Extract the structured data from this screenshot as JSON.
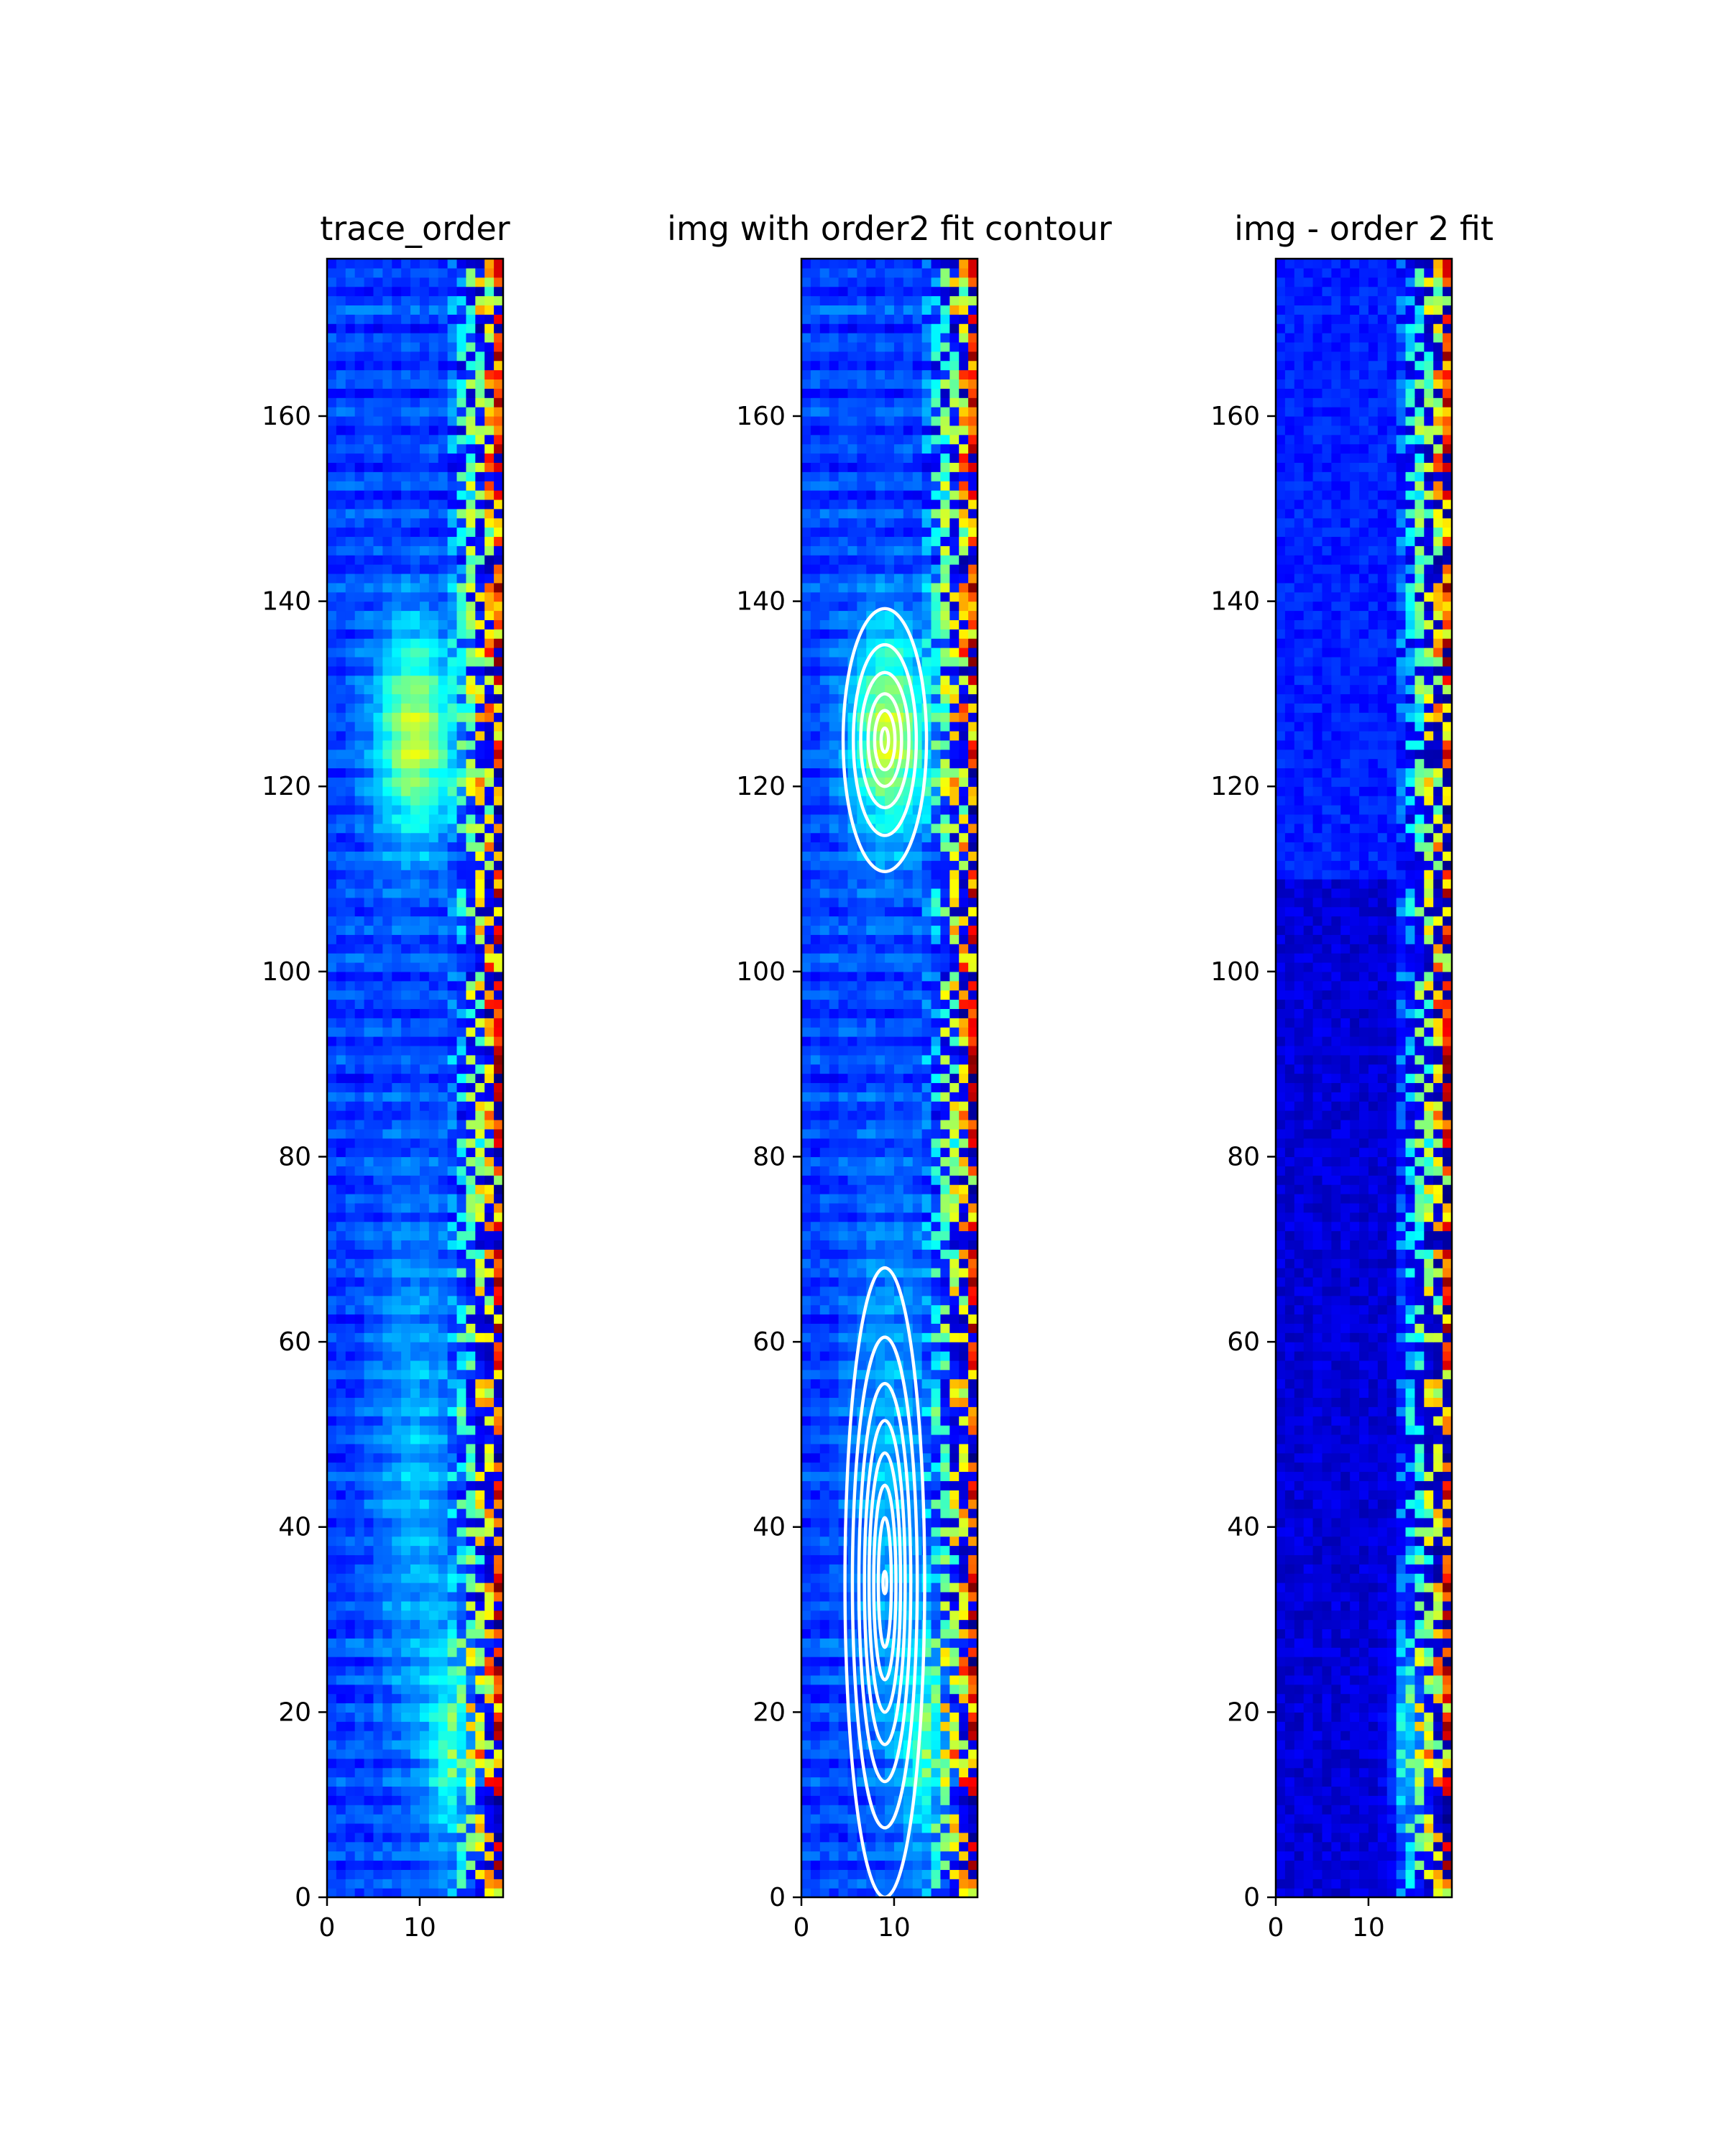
{
  "chart_data": [
    {
      "type": "heatmap",
      "title": "trace_order",
      "colormap": "jet",
      "grid": false,
      "image_size": {
        "columns": 19,
        "rows": 177
      },
      "xlim": [
        0,
        19
      ],
      "ylim": [
        0,
        177
      ],
      "xticks": [
        0,
        10
      ],
      "yticks": [
        0,
        20,
        40,
        60,
        80,
        100,
        120,
        140,
        160
      ],
      "blobs": [
        {
          "x": 9,
          "y": 125,
          "sx": 3,
          "sy": 8,
          "amp": 0.38
        },
        {
          "x": 13,
          "y": 16,
          "sx": 2,
          "sy": 8,
          "amp": 0.22
        },
        {
          "x": 9,
          "y": 45,
          "sx": 3,
          "sy": 22,
          "amp": 0.12
        }
      ],
      "contours": []
    },
    {
      "type": "heatmap",
      "title": "img with order2 fit contour",
      "colormap": "jet",
      "grid": false,
      "image_size": {
        "columns": 19,
        "rows": 177
      },
      "xlim": [
        0,
        19
      ],
      "ylim": [
        0,
        177
      ],
      "xticks": [
        0,
        10
      ],
      "yticks": [
        0,
        20,
        40,
        60,
        80,
        100,
        120,
        140,
        160
      ],
      "blobs": [
        {
          "x": 9,
          "y": 125,
          "sx": 3,
          "sy": 8,
          "amp": 0.38
        },
        {
          "x": 13,
          "y": 16,
          "sx": 2,
          "sy": 8,
          "amp": 0.22
        },
        {
          "x": 9,
          "y": 45,
          "sx": 3,
          "sy": 22,
          "amp": 0.12
        }
      ],
      "contours": [
        {
          "cx": 9.0,
          "cy": 125,
          "rx": 4.5,
          "ry": 14.2
        },
        {
          "cx": 9.0,
          "cy": 125,
          "rx": 3.4,
          "ry": 10.3
        },
        {
          "cx": 9.0,
          "cy": 125,
          "rx": 2.6,
          "ry": 7.3
        },
        {
          "cx": 9.0,
          "cy": 125,
          "rx": 1.8,
          "ry": 5.0
        },
        {
          "cx": 9.0,
          "cy": 125,
          "rx": 1.1,
          "ry": 3.2
        },
        {
          "cx": 9.0,
          "cy": 125,
          "rx": 0.4,
          "ry": 1.3
        },
        {
          "cx": 9.0,
          "cy": 34,
          "rx": 4.3,
          "ry": 34
        },
        {
          "cx": 9.0,
          "cy": 34,
          "rx": 3.5,
          "ry": 26.5
        },
        {
          "cx": 9.0,
          "cy": 34,
          "rx": 2.8,
          "ry": 21.5
        },
        {
          "cx": 9.0,
          "cy": 34,
          "rx": 2.2,
          "ry": 17.5
        },
        {
          "cx": 9.0,
          "cy": 34,
          "rx": 1.7,
          "ry": 14.0
        },
        {
          "cx": 9.0,
          "cy": 34,
          "rx": 1.2,
          "ry": 10.5
        },
        {
          "cx": 9.0,
          "cy": 34,
          "rx": 0.7,
          "ry": 7.0
        },
        {
          "cx": 9.0,
          "cy": 34,
          "rx": 0.2,
          "ry": 1.2
        }
      ]
    },
    {
      "type": "heatmap",
      "title": "img - order 2 fit",
      "colormap": "jet",
      "grid": false,
      "image_size": {
        "columns": 19,
        "rows": 177
      },
      "xlim": [
        0,
        19
      ],
      "ylim": [
        0,
        177
      ],
      "xticks": [
        0,
        10
      ],
      "yticks": [
        0,
        20,
        40,
        60,
        80,
        100,
        120,
        140,
        160
      ],
      "blobs": [
        {
          "x": 14,
          "y": 16,
          "sx": 1.5,
          "sy": 7,
          "amp": 0.2
        }
      ],
      "contours": []
    }
  ]
}
